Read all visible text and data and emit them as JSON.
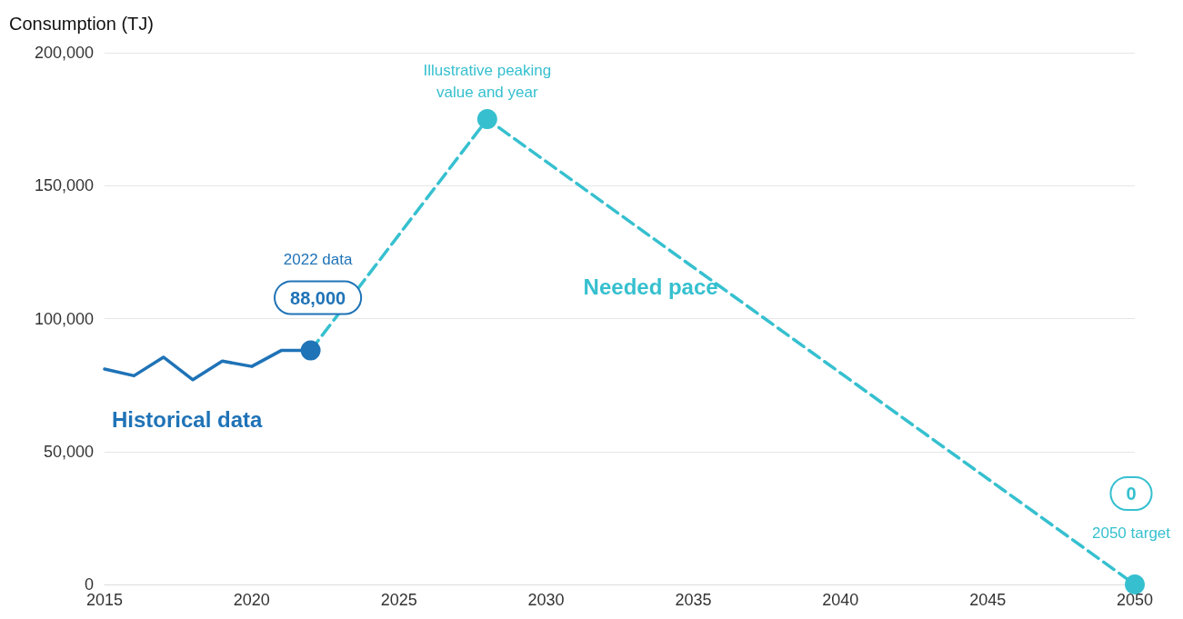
{
  "chart_data": {
    "type": "line",
    "ylabel": "Consumption (TJ)",
    "xlim": [
      2015,
      2050
    ],
    "xticks": [
      2015,
      2020,
      2025,
      2030,
      2035,
      2040,
      2045,
      2050
    ],
    "ylim": [
      0,
      200000
    ],
    "yticks": [
      {
        "value": 0,
        "label": "0"
      },
      {
        "value": 50000,
        "label": "50,000"
      },
      {
        "value": 100000,
        "label": "100,000"
      },
      {
        "value": 150000,
        "label": "150,000"
      },
      {
        "value": 200000,
        "label": "200,000"
      }
    ],
    "grid": "y",
    "legend": false,
    "series": [
      {
        "name": "Historical data",
        "color": "#1f73b7",
        "x": [
          2015,
          2016,
          2017,
          2018,
          2019,
          2020,
          2021,
          2022
        ],
        "values": [
          81000,
          78500,
          85500,
          77000,
          84000,
          82000,
          88000,
          88000
        ],
        "marker": "none",
        "line_style": "solid"
      },
      {
        "name": "Needed pace",
        "color": "#36c0cf",
        "colors": [
          "#1f73b7",
          "#36c0cf",
          "#36c0cf"
        ],
        "x": [
          2022,
          2028,
          2050
        ],
        "values": [
          88000,
          175000,
          0
        ],
        "marker": "circle",
        "line_style": "dashed"
      }
    ],
    "annotations": [
      "2022 data",
      "88,000",
      "Illustrative peaking\nvalue and year",
      "0",
      "2050 target"
    ]
  }
}
